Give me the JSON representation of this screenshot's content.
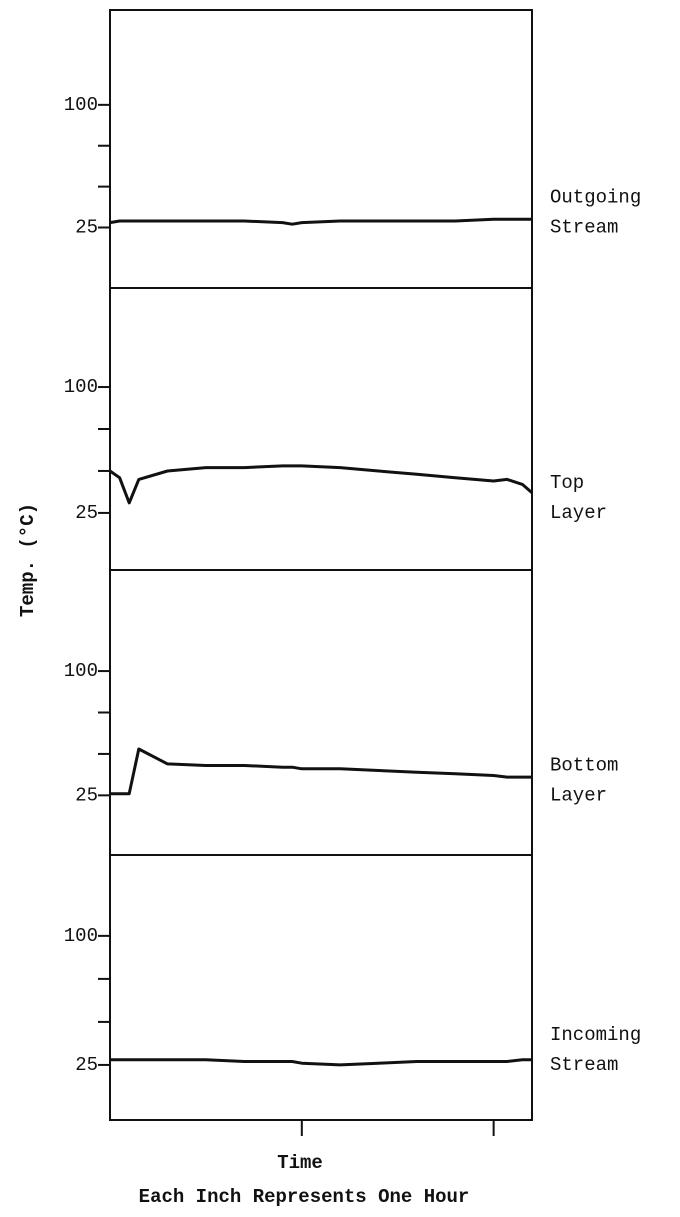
{
  "chart_data": {
    "type": "line",
    "ylabel": "Temp. (°C)",
    "xlabel": "Time",
    "note": "Each Inch Represents One Hour",
    "color": "#111111",
    "xlim": [
      0,
      2.2
    ],
    "xticks": [
      1,
      2
    ],
    "x": [
      0,
      0.05,
      0.1,
      0.15,
      0.3,
      0.5,
      0.7,
      0.9,
      0.95,
      1.0,
      1.2,
      1.4,
      1.6,
      1.8,
      2.0,
      2.07,
      2.15,
      2.2
    ],
    "panels": [
      {
        "name": "Outgoing Stream",
        "ylim": [
          -12,
          158
        ],
        "yticks": [
          25,
          100
        ],
        "minor_yticks": [
          50,
          75
        ],
        "values": [
          28,
          29,
          29,
          29,
          29,
          29,
          29,
          28,
          27,
          28,
          29,
          29,
          29,
          29,
          30,
          30,
          30,
          30
        ]
      },
      {
        "name": "Top Layer",
        "ylim": [
          -9,
          159
        ],
        "yticks": [
          25,
          100
        ],
        "minor_yticks": [
          50,
          75
        ],
        "values": [
          50,
          46,
          31,
          45,
          50,
          52,
          52,
          53,
          53,
          53,
          52,
          50,
          48,
          46,
          44,
          45,
          42,
          37
        ]
      },
      {
        "name": "Bottom Layer",
        "ylim": [
          -11,
          161
        ],
        "yticks": [
          25,
          100
        ],
        "minor_yticks": [
          50,
          75
        ],
        "values": [
          26,
          26,
          26,
          53,
          44,
          43,
          43,
          42,
          42,
          41,
          41,
          40,
          39,
          38,
          37,
          36,
          36,
          36
        ]
      },
      {
        "name": "Incoming Stream",
        "ylim": [
          -7,
          147
        ],
        "yticks": [
          25,
          100
        ],
        "minor_yticks": [
          50,
          75
        ],
        "values": [
          28,
          28,
          28,
          28,
          28,
          28,
          27,
          27,
          27,
          26,
          25,
          26,
          27,
          27,
          27,
          27,
          28,
          28
        ]
      }
    ]
  }
}
